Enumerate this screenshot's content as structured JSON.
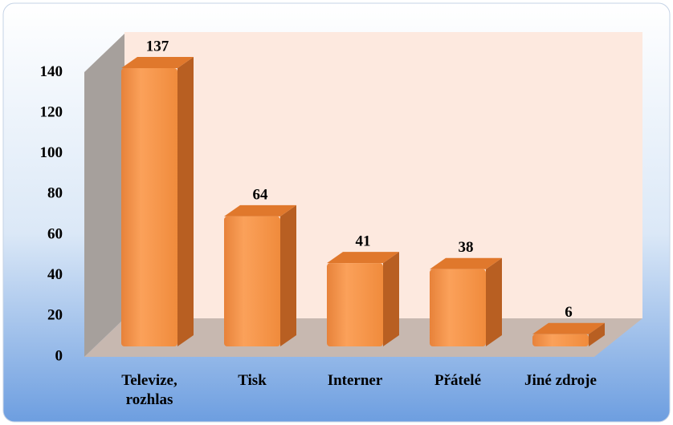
{
  "chart_data": {
    "type": "bar3d",
    "categories": [
      "Televize, rozhlas",
      "Tisk",
      "Interner",
      "Přátelé",
      "Jiné zdroje"
    ],
    "values": [
      137,
      64,
      41,
      38,
      6
    ],
    "color": "#f79646",
    "ylim": [
      0,
      140
    ],
    "yticks": [
      0,
      20,
      40,
      60,
      80,
      100,
      120,
      140
    ],
    "grid": false
  }
}
